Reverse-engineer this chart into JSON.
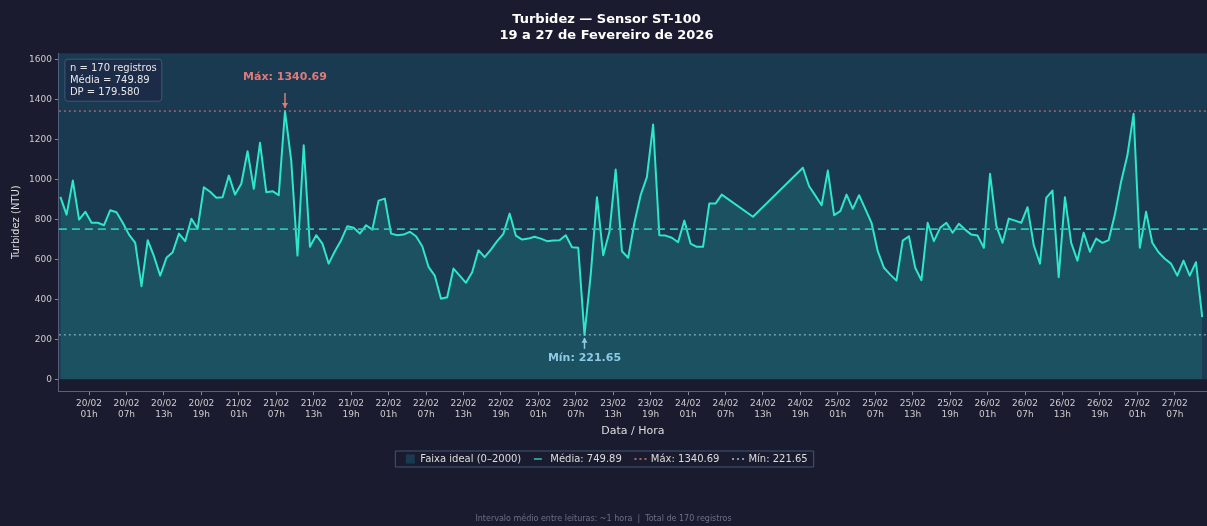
{
  "chart_data": {
    "type": "area",
    "title": "Turbidez — Sensor ST-100",
    "subtitle": "19 a 27 de Fevereiro de 2026",
    "xlabel": "Data / Hora",
    "ylabel": "Turbidez (NTU)",
    "x": [
      "2026-02-19T20:24",
      "2026-02-19T21:24",
      "2026-02-19T22:24",
      "2026-02-19T23:24",
      "2026-02-20T00:24",
      "2026-02-20T01:24",
      "2026-02-20T02:24",
      "2026-02-20T03:24",
      "2026-02-20T04:24",
      "2026-02-20T05:24",
      "2026-02-20T06:24",
      "2026-02-20T07:24",
      "2026-02-20T08:24",
      "2026-02-20T09:24",
      "2026-02-20T10:24",
      "2026-02-20T11:24",
      "2026-02-20T12:24",
      "2026-02-20T13:24",
      "2026-02-20T14:24",
      "2026-02-20T15:24",
      "2026-02-20T16:24",
      "2026-02-20T17:24",
      "2026-02-20T18:24",
      "2026-02-20T19:24",
      "2026-02-20T20:24",
      "2026-02-20T21:24",
      "2026-02-20T22:24",
      "2026-02-20T23:24",
      "2026-02-21T00:24",
      "2026-02-21T01:24",
      "2026-02-21T02:24",
      "2026-02-21T03:24",
      "2026-02-21T04:24",
      "2026-02-21T05:24",
      "2026-02-21T06:24",
      "2026-02-21T07:24",
      "2026-02-21T08:24",
      "2026-02-21T09:24",
      "2026-02-21T10:24",
      "2026-02-21T11:24",
      "2026-02-21T12:24",
      "2026-02-21T13:24",
      "2026-02-21T14:24",
      "2026-02-21T15:24",
      "2026-02-21T16:24",
      "2026-02-21T17:24",
      "2026-02-21T18:24",
      "2026-02-21T19:24",
      "2026-02-21T20:24",
      "2026-02-21T21:24",
      "2026-02-21T22:24",
      "2026-02-21T23:24",
      "2026-02-22T00:24",
      "2026-02-22T01:24",
      "2026-02-22T02:24",
      "2026-02-22T03:24",
      "2026-02-22T04:24",
      "2026-02-22T05:24",
      "2026-02-22T06:24",
      "2026-02-22T07:24",
      "2026-02-22T08:24",
      "2026-02-22T09:24",
      "2026-02-22T10:24",
      "2026-02-22T11:24",
      "2026-02-22T12:24",
      "2026-02-22T13:24",
      "2026-02-22T14:24",
      "2026-02-22T15:24",
      "2026-02-22T16:24",
      "2026-02-22T17:24",
      "2026-02-22T18:24",
      "2026-02-22T19:24",
      "2026-02-22T20:24",
      "2026-02-22T21:24",
      "2026-02-22T22:24",
      "2026-02-22T23:24",
      "2026-02-23T00:24",
      "2026-02-23T01:24",
      "2026-02-23T02:24",
      "2026-02-23T03:24",
      "2026-02-23T04:24",
      "2026-02-23T05:24",
      "2026-02-23T06:24",
      "2026-02-23T07:24",
      "2026-02-23T08:24",
      "2026-02-23T09:24",
      "2026-02-23T10:24",
      "2026-02-23T11:24",
      "2026-02-23T12:24",
      "2026-02-23T13:24",
      "2026-02-23T14:24",
      "2026-02-23T15:24",
      "2026-02-23T16:24",
      "2026-02-23T17:24",
      "2026-02-23T18:24",
      "2026-02-23T19:24",
      "2026-02-23T20:24",
      "2026-02-23T21:24",
      "2026-02-23T22:24",
      "2026-02-23T23:24",
      "2026-02-24T00:24",
      "2026-02-24T01:24",
      "2026-02-24T02:24",
      "2026-02-24T03:24",
      "2026-02-24T04:24",
      "2026-02-24T05:24",
      "2026-02-24T06:24",
      "2026-02-24T11:24",
      "2026-02-24T19:24",
      "2026-02-24T20:24",
      "2026-02-24T21:24",
      "2026-02-24T22:24",
      "2026-02-24T23:24",
      "2026-02-25T00:24",
      "2026-02-25T01:24",
      "2026-02-25T02:24",
      "2026-02-25T03:24",
      "2026-02-25T04:24",
      "2026-02-25T05:24",
      "2026-02-25T06:24",
      "2026-02-25T07:24",
      "2026-02-25T08:24",
      "2026-02-25T09:24",
      "2026-02-25T10:24",
      "2026-02-25T11:24",
      "2026-02-25T12:24",
      "2026-02-25T13:24",
      "2026-02-25T14:24",
      "2026-02-25T15:24",
      "2026-02-25T16:24",
      "2026-02-25T17:24",
      "2026-02-25T18:24",
      "2026-02-25T19:24",
      "2026-02-25T20:24",
      "2026-02-25T21:24",
      "2026-02-25T22:24",
      "2026-02-25T23:24",
      "2026-02-26T00:24",
      "2026-02-26T01:24",
      "2026-02-26T02:24",
      "2026-02-26T03:24",
      "2026-02-26T04:24",
      "2026-02-26T05:24",
      "2026-02-26T06:24",
      "2026-02-26T07:24",
      "2026-02-26T08:24",
      "2026-02-26T09:24",
      "2026-02-26T10:24",
      "2026-02-26T11:24",
      "2026-02-26T12:24",
      "2026-02-26T13:24",
      "2026-02-26T14:24",
      "2026-02-26T15:24",
      "2026-02-26T16:24",
      "2026-02-26T17:24",
      "2026-02-26T18:24",
      "2026-02-26T19:24",
      "2026-02-26T20:24",
      "2026-02-26T21:24",
      "2026-02-26T22:24",
      "2026-02-26T23:24",
      "2026-02-27T00:24",
      "2026-02-27T01:24",
      "2026-02-27T02:24",
      "2026-02-27T03:24",
      "2026-02-27T04:24",
      "2026-02-27T05:24",
      "2026-02-27T06:24",
      "2026-02-27T07:24",
      "2026-02-27T08:24",
      "2026-02-27T09:24",
      "2026-02-27T10:24",
      "2026-02-27T11:24"
    ],
    "series": [
      {
        "color": "#2ee6c8",
        "values": [
          912,
          823,
          993,
          798,
          837,
          782,
          782,
          770,
          845,
          835,
          782,
          723,
          682,
          465,
          695,
          615,
          518,
          607,
          635,
          728,
          690,
          802,
          753,
          960,
          937,
          907,
          910,
          1018,
          923,
          977,
          1140,
          952,
          1182,
          935,
          940,
          920,
          1340.69,
          1093,
          618,
          1170,
          662,
          720,
          678,
          578,
          640,
          695,
          765,
          757,
          728,
          770,
          748,
          893,
          903,
          728,
          720,
          723,
          737,
          715,
          665,
          562,
          518,
          402,
          410,
          553,
          518,
          482,
          535,
          645,
          610,
          648,
          690,
          727,
          828,
          718,
          698,
          703,
          712,
          703,
          690,
          693,
          695,
          720,
          660,
          657,
          221.65,
          523,
          910,
          620,
          737,
          1048,
          640,
          607,
          782,
          920,
          1010,
          1273,
          720,
          718,
          707,
          685,
          793,
          678,
          662,
          662,
          878,
          878,
          923,
          812,
          1057,
          965,
          918,
          870,
          1043,
          820,
          840,
          923,
          852,
          920,
          852,
          782,
          640,
          557,
          523,
          493,
          693,
          715,
          557,
          495,
          782,
          690,
          757,
          782,
          732,
          777,
          748,
          723,
          718,
          657,
          1027,
          768,
          682,
          803,
          793,
          782,
          860,
          670,
          578,
          907,
          943,
          510,
          910,
          682,
          593,
          732,
          637,
          703,
          682,
          695,
          823,
          987,
          1118,
          1327,
          657,
          837,
          682,
          635,
          602,
          578,
          518,
          593,
          518,
          585,
          310
        ]
      }
    ],
    "xlim": [
      "2026-02-19T20:10",
      "2026-02-27T12:10"
    ],
    "xticks": [
      {
        "value": "2026-02-20T01:00",
        "label": "20/02\n01h"
      },
      {
        "value": "2026-02-20T07:00",
        "label": "20/02\n07h"
      },
      {
        "value": "2026-02-20T13:00",
        "label": "20/02\n13h"
      },
      {
        "value": "2026-02-20T19:00",
        "label": "20/02\n19h"
      },
      {
        "value": "2026-02-21T01:00",
        "label": "21/02\n01h"
      },
      {
        "value": "2026-02-21T07:00",
        "label": "21/02\n07h"
      },
      {
        "value": "2026-02-21T13:00",
        "label": "21/02\n13h"
      },
      {
        "value": "2026-02-21T19:00",
        "label": "21/02\n19h"
      },
      {
        "value": "2026-02-22T01:00",
        "label": "22/02\n01h"
      },
      {
        "value": "2026-02-22T07:00",
        "label": "22/02\n07h"
      },
      {
        "value": "2026-02-22T13:00",
        "label": "22/02\n13h"
      },
      {
        "value": "2026-02-22T19:00",
        "label": "22/02\n19h"
      },
      {
        "value": "2026-02-23T01:00",
        "label": "23/02\n01h"
      },
      {
        "value": "2026-02-23T07:00",
        "label": "23/02\n07h"
      },
      {
        "value": "2026-02-23T13:00",
        "label": "23/02\n13h"
      },
      {
        "value": "2026-02-23T19:00",
        "label": "23/02\n19h"
      },
      {
        "value": "2026-02-24T01:00",
        "label": "24/02\n01h"
      },
      {
        "value": "2026-02-24T07:00",
        "label": "24/02\n07h"
      },
      {
        "value": "2026-02-24T13:00",
        "label": "24/02\n13h"
      },
      {
        "value": "2026-02-24T19:00",
        "label": "24/02\n19h"
      },
      {
        "value": "2026-02-25T01:00",
        "label": "25/02\n01h"
      },
      {
        "value": "2026-02-25T07:00",
        "label": "25/02\n07h"
      },
      {
        "value": "2026-02-25T13:00",
        "label": "25/02\n13h"
      },
      {
        "value": "2026-02-25T19:00",
        "label": "25/02\n19h"
      },
      {
        "value": "2026-02-26T01:00",
        "label": "26/02\n01h"
      },
      {
        "value": "2026-02-26T07:00",
        "label": "26/02\n07h"
      },
      {
        "value": "2026-02-26T13:00",
        "label": "26/02\n13h"
      },
      {
        "value": "2026-02-26T19:00",
        "label": "26/02\n19h"
      },
      {
        "value": "2026-02-27T01:00",
        "label": "27/02\n01h"
      },
      {
        "value": "2026-02-27T07:00",
        "label": "27/02\n07h"
      }
    ],
    "ylim": [
      -60,
      1630
    ],
    "yticks": [
      0,
      200,
      400,
      600,
      800,
      1000,
      1200,
      1400,
      1600
    ],
    "bands": [
      {
        "axis": "y",
        "from": 0,
        "to": 2000,
        "label": "Faixa ideal (0–2000)",
        "color": "#1a3a52"
      }
    ],
    "ref_lines": [
      {
        "axis": "y",
        "value": 749.89,
        "label": "Média: 749.89",
        "color": "#2ec4b6",
        "line_style": "dashed"
      },
      {
        "axis": "y",
        "value": 1340.69,
        "label": "Máx: 1340.69",
        "color": "#e07a7a",
        "line_style": "dotted"
      },
      {
        "axis": "y",
        "value": 221.65,
        "label": "Mín: 221.65",
        "color": "#8ecae6",
        "line_style": "dotted"
      }
    ],
    "annotations": [
      "n = 170 registros\nMédia = 749.89\nDP = 179.580",
      {
        "text": "Máx: 1340.69",
        "x": "2026-02-21T08:24",
        "y": 1340.69
      },
      {
        "text": "Mín: 221.65",
        "x": "2026-02-23T08:24",
        "y": 221.65
      },
      "Intervalo médio entre leituras: ~1 hora  |  Total de 170 registros"
    ],
    "legend": "bottom",
    "grid": false
  }
}
